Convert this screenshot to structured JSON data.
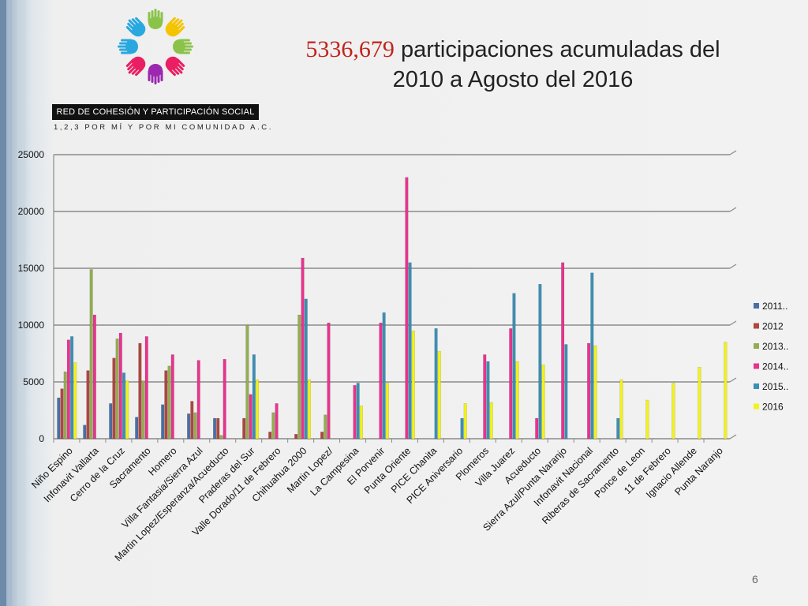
{
  "slide": {
    "title_highlight": "5336,679",
    "title_rest": " participaciones  acumuladas del",
    "title_line2": "2010 a Agosto del 2016",
    "org_name": "RED DE COHESIÓN Y PARTICIPACIÓN SOCIAL",
    "org_sub": "1,2,3 POR MÍ Y POR MI COMUNIDAD A.C.",
    "page_number": "6"
  },
  "chart_data": {
    "type": "bar",
    "title": "",
    "xlabel": "",
    "ylabel": "",
    "ylim": [
      0,
      25000
    ],
    "yticks": [
      0,
      5000,
      10000,
      15000,
      20000,
      25000
    ],
    "grid": true,
    "legend_position": "right",
    "categories": [
      "Niño Espino",
      "Infonavit Vallarta",
      "Cerro de la Cruz",
      "Sacramento",
      "Homero",
      "Villa Fantasia/Sierra Azul",
      "Martin Lopez/Esperanza/Acueducto",
      "Praderas del Sur",
      "Valle Dorado/11 de Febrero",
      "Chihuahua 2000",
      "Martin Lopez/",
      "La Campesina",
      "El Porvenir",
      "Punta Oriente",
      "PICE Chanita",
      "PICE Aniversario",
      "Plomeros",
      "Villa Juarez",
      "Acueducto",
      "Sierra Azul/Punta Naranjo",
      "Infonavit Nacional",
      "Riberas de Sacramento",
      "Ponce de Leon",
      "11 de Febrero",
      "Ignacio Allende",
      "Punta Naranjo"
    ],
    "series": [
      {
        "name": "2011..",
        "color": "#4a6fa5",
        "values": [
          3600,
          1200,
          3100,
          1900,
          3000,
          2200,
          1800,
          0,
          0,
          0,
          0,
          0,
          0,
          0,
          0,
          0,
          0,
          0,
          0,
          0,
          0,
          0,
          0,
          0,
          0,
          0
        ]
      },
      {
        "name": "2012",
        "color": "#b0463e",
        "values": [
          4400,
          6000,
          7100,
          8400,
          6000,
          3300,
          1800,
          1800,
          600,
          400,
          600,
          0,
          0,
          0,
          0,
          0,
          0,
          0,
          0,
          0,
          0,
          0,
          0,
          0,
          0,
          0
        ]
      },
      {
        "name": "2013..",
        "color": "#93ad53",
        "values": [
          5900,
          14900,
          8800,
          5100,
          6400,
          2300,
          300,
          10000,
          2300,
          10900,
          2100,
          0,
          0,
          0,
          0,
          0,
          0,
          0,
          0,
          0,
          0,
          0,
          0,
          0,
          0,
          0
        ]
      },
      {
        "name": "2014..",
        "color": "#e8338e",
        "values": [
          8700,
          10900,
          9300,
          9000,
          7400,
          6900,
          7000,
          3900,
          3100,
          15900,
          10200,
          4700,
          10200,
          23000,
          0,
          0,
          7400,
          9700,
          1800,
          15500,
          8400,
          0,
          0,
          0,
          0,
          0
        ]
      },
      {
        "name": "2015..",
        "color": "#3b8fb4",
        "values": [
          9000,
          0,
          5800,
          0,
          0,
          0,
          0,
          7400,
          0,
          12300,
          0,
          4900,
          11100,
          15500,
          9700,
          1800,
          6800,
          12800,
          13600,
          8300,
          14600,
          1800,
          0,
          0,
          0,
          0
        ]
      },
      {
        "name": "2016",
        "color": "#f2f21c",
        "values": [
          6700,
          0,
          5100,
          0,
          0,
          0,
          0,
          5200,
          0,
          5200,
          0,
          2900,
          4900,
          9500,
          7700,
          3100,
          3200,
          6800,
          6500,
          0,
          8200,
          5200,
          3400,
          4900,
          6300,
          8500
        ]
      }
    ]
  }
}
